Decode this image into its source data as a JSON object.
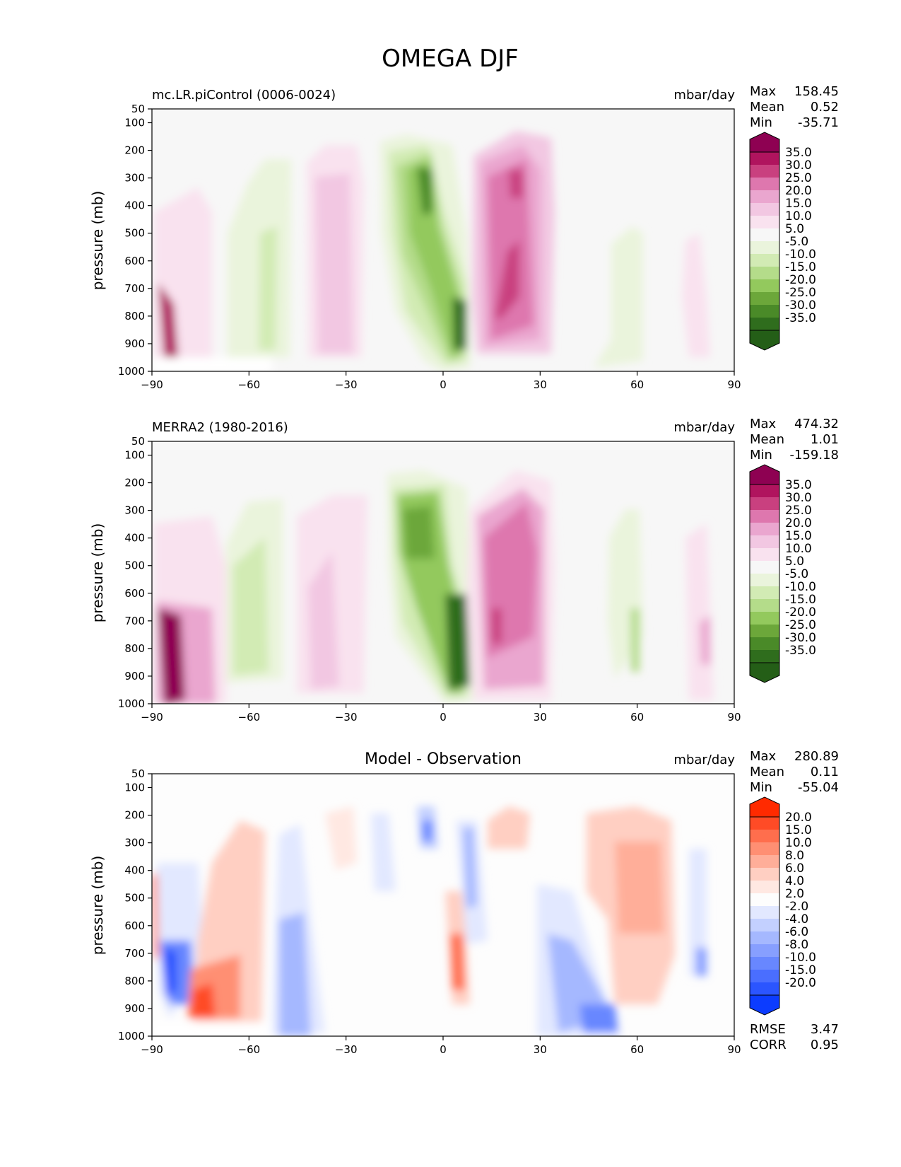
{
  "figure_title": "OMEGA DJF",
  "chart_data": [
    {
      "type": "heatmap",
      "subtitle": "mc.LR.piControl (0006-0024)",
      "units": "mbar/day",
      "stats": [
        {
          "label": "Max",
          "value": "158.45"
        },
        {
          "label": "Mean",
          "value": "0.52"
        },
        {
          "label": "Min",
          "value": "-35.71"
        }
      ],
      "ylabel": "pressure (mb)",
      "xlim": [
        -90,
        90
      ],
      "ylim": [
        1000,
        50
      ],
      "xticks": [
        -90,
        -60,
        -30,
        0,
        30,
        60,
        90
      ],
      "yticks": [
        50,
        100,
        200,
        300,
        400,
        500,
        600,
        700,
        800,
        900,
        1000
      ],
      "colorbar": {
        "levels": [
          "35.0",
          "30.0",
          "25.0",
          "20.0",
          "15.0",
          "10.0",
          "5.0",
          "-5.0",
          "-10.0",
          "-15.0",
          "-20.0",
          "-25.0",
          "-30.0",
          "-35.0"
        ],
        "colors": [
          "#8e0152",
          "#b0145e",
          "#c9407f",
          "#de77ae",
          "#eaa6cf",
          "#f2c7e2",
          "#f9e2ef",
          "#f7f7f7",
          "#eaf4dc",
          "#d2ebb4",
          "#b4dc8a",
          "#93c95d",
          "#6ca73a",
          "#4a8a28",
          "#2f6d1d",
          "#245e17"
        ]
      },
      "features": [
        {
          "lat": -85,
          "p": 800,
          "value": 35
        },
        {
          "lat": -35,
          "p": 500,
          "value": 10
        },
        {
          "lat": -5,
          "p": 400,
          "value": -25
        },
        {
          "lat": 6,
          "p": 850,
          "value": -35
        },
        {
          "lat": 22,
          "p": 450,
          "value": 20
        },
        {
          "lat": -52,
          "p": 600,
          "value": -10
        }
      ]
    },
    {
      "type": "heatmap",
      "subtitle": "MERRA2 (1980-2016)",
      "units": "mbar/day",
      "stats": [
        {
          "label": "Max",
          "value": "474.32"
        },
        {
          "label": "Mean",
          "value": "1.01"
        },
        {
          "label": "Min",
          "value": "-159.18"
        }
      ],
      "ylabel": "pressure (mb)",
      "xlim": [
        -90,
        90
      ],
      "ylim": [
        1000,
        50
      ],
      "xticks": [
        -90,
        -60,
        -30,
        0,
        30,
        60,
        90
      ],
      "yticks": [
        50,
        100,
        200,
        300,
        400,
        500,
        600,
        700,
        800,
        900,
        1000
      ],
      "colorbar": {
        "levels": [
          "35.0",
          "30.0",
          "25.0",
          "20.0",
          "15.0",
          "10.0",
          "5.0",
          "-5.0",
          "-10.0",
          "-15.0",
          "-20.0",
          "-25.0",
          "-30.0",
          "-35.0"
        ],
        "colors": [
          "#8e0152",
          "#b0145e",
          "#c9407f",
          "#de77ae",
          "#eaa6cf",
          "#f2c7e2",
          "#f9e2ef",
          "#f7f7f7",
          "#eaf4dc",
          "#d2ebb4",
          "#b4dc8a",
          "#93c95d",
          "#6ca73a",
          "#4a8a28",
          "#2f6d1d",
          "#245e17"
        ]
      },
      "features": [
        {
          "lat": -84,
          "p": 830,
          "value": 35
        },
        {
          "lat": -40,
          "p": 500,
          "value": 10
        },
        {
          "lat": -7,
          "p": 380,
          "value": -25
        },
        {
          "lat": 5,
          "p": 820,
          "value": -35
        },
        {
          "lat": 20,
          "p": 450,
          "value": 20
        },
        {
          "lat": -50,
          "p": 600,
          "value": -10
        }
      ]
    },
    {
      "type": "heatmap",
      "subtitle": "Model - Observation",
      "units": "mbar/day",
      "stats": [
        {
          "label": "Max",
          "value": "280.89"
        },
        {
          "label": "Mean",
          "value": "0.11"
        },
        {
          "label": "Min",
          "value": "-55.04"
        }
      ],
      "extra_stats": [
        {
          "label": "RMSE",
          "value": "3.47"
        },
        {
          "label": "CORR",
          "value": "0.95"
        }
      ],
      "ylabel": "pressure (mb)",
      "xlim": [
        -90,
        90
      ],
      "ylim": [
        1000,
        50
      ],
      "xticks": [
        -90,
        -60,
        -30,
        0,
        30,
        60,
        90
      ],
      "yticks": [
        50,
        100,
        200,
        300,
        400,
        500,
        600,
        700,
        800,
        900,
        1000
      ],
      "colorbar": {
        "levels": [
          "20.0",
          "15.0",
          "10.0",
          "8.0",
          "6.0",
          "4.0",
          "2.0",
          "-2.0",
          "-4.0",
          "-6.0",
          "-8.0",
          "-10.0",
          "-15.0",
          "-20.0"
        ],
        "colors": [
          "#ff2a00",
          "#ff4b26",
          "#ff6e4d",
          "#ff8f73",
          "#ffae99",
          "#ffcfc2",
          "#ffe8e2",
          "#fdfdfd",
          "#e2e8ff",
          "#c3d0ff",
          "#a5b8ff",
          "#879fff",
          "#6887ff",
          "#4a6eff",
          "#2b55ff",
          "#0c3cff"
        ]
      },
      "features": [
        {
          "lat": -75,
          "p": 880,
          "value": 15
        },
        {
          "lat": -86,
          "p": 780,
          "value": -20
        },
        {
          "lat": -47,
          "p": 800,
          "value": -6
        },
        {
          "lat": 5,
          "p": 800,
          "value": 10
        },
        {
          "lat": -5,
          "p": 280,
          "value": -8
        },
        {
          "lat": 45,
          "p": 900,
          "value": -8
        },
        {
          "lat": 60,
          "p": 500,
          "value": 6
        }
      ]
    }
  ]
}
